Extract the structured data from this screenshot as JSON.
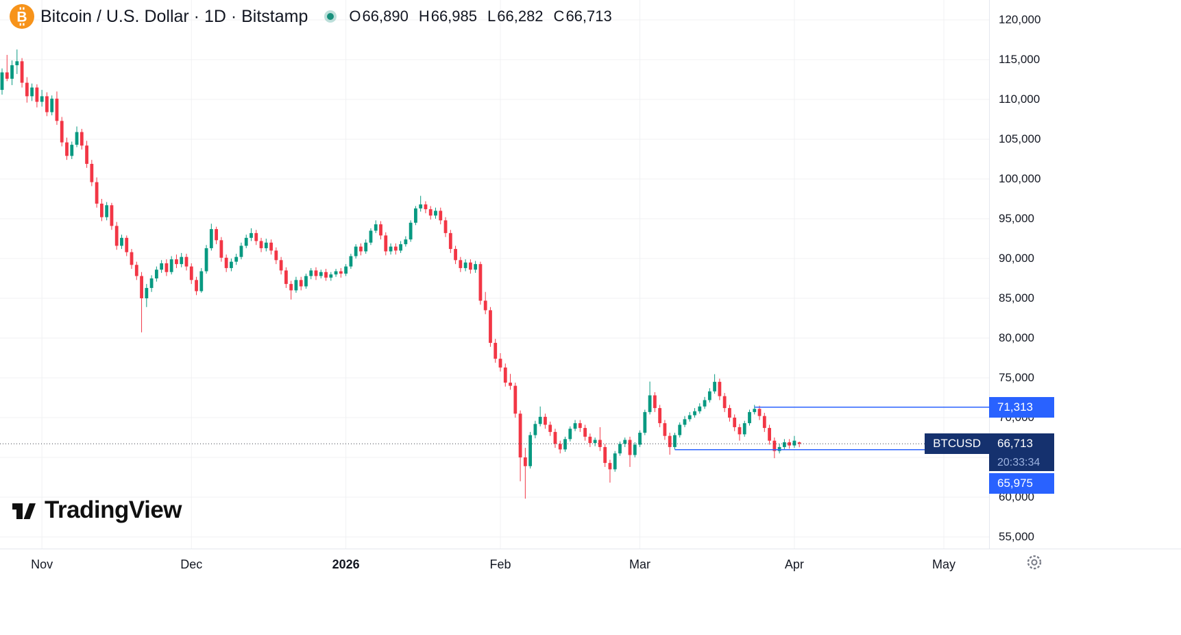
{
  "colors": {
    "accent": "#2962ff",
    "up": "#089981",
    "down": "#f23645",
    "label_navy": "#15316e",
    "text": "#131722",
    "muted": "#787b86",
    "grid": "#f0f1f3",
    "dotted_price_line": "#363a45",
    "btc_orange": "#f7931a",
    "live_dot_teal": "#17907c"
  },
  "header": {
    "title": "Bitcoin / U.S. Dollar · 1D · Bitstamp",
    "ohlc": {
      "o_label": "O",
      "o_value": "66,890",
      "h_label": "H",
      "h_value": "66,985",
      "l_label": "L",
      "l_value": "66,282",
      "c_label": "C",
      "c_value": "66,713"
    }
  },
  "watermark": {
    "text": "TradingView"
  },
  "price_axis": {
    "ticks": [
      {
        "value": 120000,
        "label": "120,000"
      },
      {
        "value": 115000,
        "label": "115,000"
      },
      {
        "value": 110000,
        "label": "110,000"
      },
      {
        "value": 105000,
        "label": "105,000"
      },
      {
        "value": 100000,
        "label": "100,000"
      },
      {
        "value": 95000,
        "label": "95,000"
      },
      {
        "value": 90000,
        "label": "90,000"
      },
      {
        "value": 85000,
        "label": "85,000"
      },
      {
        "value": 80000,
        "label": "80,000"
      },
      {
        "value": 75000,
        "label": "75,000"
      },
      {
        "value": 70000,
        "label": "70,000"
      },
      {
        "value": 65000,
        "label": "65,000"
      },
      {
        "value": 60000,
        "label": "60,000"
      },
      {
        "value": 55000,
        "label": "55,000"
      }
    ]
  },
  "time_axis": {
    "labels": [
      {
        "label": "Nov",
        "index": 8,
        "bold": false
      },
      {
        "label": "Dec",
        "index": 38,
        "bold": false
      },
      {
        "label": "2026",
        "index": 69,
        "bold": true
      },
      {
        "label": "Feb",
        "index": 100,
        "bold": false
      },
      {
        "label": "Mar",
        "index": 128,
        "bold": false
      },
      {
        "label": "Apr",
        "index": 159,
        "bold": false
      },
      {
        "label": "May",
        "index": 189,
        "bold": false
      }
    ]
  },
  "price_labels": {
    "current": {
      "symbol": "BTCUSD",
      "price": "66,713",
      "value": 66713,
      "countdown": "20:33:34"
    },
    "levels": [
      {
        "label": "71,313",
        "value": 71313,
        "start_index": 151
      },
      {
        "label": "65,975",
        "value": 65975,
        "start_index": 135
      }
    ]
  },
  "chart_data": {
    "type": "candlestick",
    "title": "Bitcoin / U.S. Dollar",
    "symbol": "BTCUSD",
    "interval": "1D",
    "exchange": "Bitstamp",
    "current_bar": {
      "open": 66890,
      "high": 66985,
      "low": 66282,
      "close": 66713
    },
    "y_axis": {
      "min": 55000,
      "max": 120000,
      "tick_step": 5000
    },
    "x_axis_labels": [
      "Nov",
      "Dec",
      "2026",
      "Feb",
      "Mar",
      "Apr",
      "May"
    ],
    "grid": true,
    "level_lines": [
      71313,
      65975
    ],
    "current_price_line": 66713,
    "candles_format": [
      "open",
      "high",
      "low",
      "close"
    ],
    "candles": [
      [
        111200,
        113900,
        110600,
        113400
      ],
      [
        113400,
        115600,
        112300,
        112600
      ],
      [
        112600,
        114900,
        111800,
        114300
      ],
      [
        114300,
        116278,
        113200,
        114800
      ],
      [
        114800,
        115200,
        111500,
        112100
      ],
      [
        112100,
        112800,
        109600,
        110400
      ],
      [
        110400,
        112000,
        109800,
        111500
      ],
      [
        111500,
        111900,
        109000,
        109700
      ],
      [
        109700,
        111200,
        109100,
        110400
      ],
      [
        110400,
        110900,
        107900,
        108400
      ],
      [
        108400,
        110500,
        108000,
        110100
      ],
      [
        110100,
        111000,
        106800,
        107300
      ],
      [
        107300,
        107800,
        104100,
        104600
      ],
      [
        104600,
        105200,
        102400,
        102900
      ],
      [
        102900,
        104700,
        102500,
        104300
      ],
      [
        104300,
        106600,
        104000,
        105900
      ],
      [
        105900,
        106300,
        103700,
        104200
      ],
      [
        104200,
        104800,
        101400,
        101900
      ],
      [
        101900,
        102400,
        99100,
        99600
      ],
      [
        99600,
        100200,
        96400,
        96900
      ],
      [
        96900,
        97500,
        94700,
        95200
      ],
      [
        95200,
        97100,
        94800,
        96700
      ],
      [
        96700,
        97000,
        93600,
        94100
      ],
      [
        94100,
        94600,
        91100,
        91600
      ],
      [
        91600,
        93000,
        91200,
        92600
      ],
      [
        92600,
        92900,
        90300,
        90800
      ],
      [
        90800,
        91200,
        88700,
        89200
      ],
      [
        89200,
        89600,
        87300,
        87800
      ],
      [
        87800,
        88300,
        80719,
        85000
      ],
      [
        85000,
        86800,
        83900,
        86300
      ],
      [
        86300,
        87900,
        85800,
        87500
      ],
      [
        87500,
        89000,
        87100,
        88600
      ],
      [
        88600,
        89800,
        88200,
        89400
      ],
      [
        89400,
        89900,
        87800,
        88300
      ],
      [
        88300,
        90300,
        88000,
        89900
      ],
      [
        89900,
        90500,
        88800,
        89300
      ],
      [
        89300,
        90700,
        88900,
        90200
      ],
      [
        90200,
        90600,
        88500,
        89000
      ],
      [
        89000,
        89400,
        86800,
        87300
      ],
      [
        87300,
        87700,
        85400,
        85900
      ],
      [
        85900,
        88800,
        85700,
        88400
      ],
      [
        88400,
        91700,
        88100,
        91300
      ],
      [
        91300,
        94376,
        91000,
        93700
      ],
      [
        93700,
        94000,
        91800,
        92300
      ],
      [
        92300,
        92700,
        89600,
        90100
      ],
      [
        90100,
        90500,
        88300,
        88800
      ],
      [
        88800,
        90000,
        88400,
        89600
      ],
      [
        89600,
        90600,
        89200,
        90200
      ],
      [
        90200,
        92000,
        89900,
        91600
      ],
      [
        91600,
        93000,
        91300,
        92600
      ],
      [
        92600,
        93800,
        92200,
        93200
      ],
      [
        93200,
        93600,
        91700,
        92200
      ],
      [
        92200,
        92600,
        90800,
        91300
      ],
      [
        91300,
        92500,
        90900,
        92000
      ],
      [
        92000,
        92400,
        90500,
        91000
      ],
      [
        91000,
        91400,
        89300,
        89800
      ],
      [
        89800,
        90200,
        88000,
        88500
      ],
      [
        88500,
        88900,
        86300,
        86800
      ],
      [
        86800,
        87200,
        84847,
        86000
      ],
      [
        86000,
        87700,
        85700,
        87300
      ],
      [
        87300,
        87700,
        86000,
        86500
      ],
      [
        86500,
        88100,
        86200,
        87800
      ],
      [
        87800,
        88800,
        87400,
        88500
      ],
      [
        88500,
        88900,
        87300,
        87800
      ],
      [
        87800,
        88600,
        87500,
        88300
      ],
      [
        88300,
        88700,
        87200,
        87600
      ],
      [
        87600,
        88300,
        87200,
        88000
      ],
      [
        88000,
        88700,
        87700,
        88400
      ],
      [
        88400,
        88800,
        87600,
        88100
      ],
      [
        88100,
        89300,
        87800,
        89000
      ],
      [
        89000,
        90600,
        88700,
        90300
      ],
      [
        90300,
        91800,
        90000,
        91500
      ],
      [
        91500,
        91900,
        90400,
        90900
      ],
      [
        90900,
        92400,
        90600,
        92000
      ],
      [
        92000,
        93800,
        91700,
        93500
      ],
      [
        93500,
        94800,
        93200,
        94300
      ],
      [
        94300,
        94700,
        92400,
        92900
      ],
      [
        92900,
        93300,
        90400,
        90900
      ],
      [
        90900,
        91900,
        90500,
        91500
      ],
      [
        91500,
        91900,
        90500,
        91000
      ],
      [
        91000,
        92200,
        90700,
        91800
      ],
      [
        91800,
        92800,
        91500,
        92400
      ],
      [
        92400,
        94800,
        92100,
        94500
      ],
      [
        94500,
        96600,
        94200,
        96300
      ],
      [
        96300,
        97882,
        95900,
        96800
      ],
      [
        96800,
        97200,
        95700,
        96200
      ],
      [
        96200,
        96600,
        94900,
        95400
      ],
      [
        95400,
        96400,
        95000,
        96000
      ],
      [
        96000,
        96400,
        94300,
        94800
      ],
      [
        94800,
        95200,
        92700,
        93200
      ],
      [
        93200,
        93600,
        90700,
        91200
      ],
      [
        91200,
        91600,
        89300,
        89800
      ],
      [
        89800,
        90200,
        88300,
        88800
      ],
      [
        88800,
        89900,
        88400,
        89500
      ],
      [
        89500,
        89900,
        88100,
        88600
      ],
      [
        88600,
        89700,
        88200,
        89300
      ],
      [
        89300,
        89600,
        84200,
        84700
      ],
      [
        84700,
        85800,
        83000,
        83500
      ],
      [
        83500,
        83900,
        78900,
        79400
      ],
      [
        79400,
        79900,
        76900,
        77400
      ],
      [
        77400,
        78100,
        75800,
        76300
      ],
      [
        76300,
        76800,
        73900,
        74400
      ],
      [
        74400,
        75500,
        73500,
        74000
      ],
      [
        74000,
        74400,
        70000,
        70500
      ],
      [
        70500,
        70900,
        62000,
        65000
      ],
      [
        65000,
        66200,
        59811,
        63900
      ],
      [
        63900,
        68200,
        63600,
        67800
      ],
      [
        67800,
        69600,
        67400,
        69200
      ],
      [
        69200,
        71400,
        68900,
        70100
      ],
      [
        70100,
        70500,
        68600,
        69100
      ],
      [
        69100,
        69500,
        67700,
        68200
      ],
      [
        68200,
        68600,
        66200,
        66700
      ],
      [
        66700,
        67100,
        65500,
        66000
      ],
      [
        66000,
        67600,
        65700,
        67300
      ],
      [
        67300,
        68900,
        67000,
        68600
      ],
      [
        68600,
        69700,
        68300,
        69300
      ],
      [
        69300,
        69700,
        68200,
        68700
      ],
      [
        68700,
        69100,
        67100,
        67600
      ],
      [
        67600,
        68000,
        66300,
        66800
      ],
      [
        66800,
        67500,
        66400,
        67200
      ],
      [
        67200,
        68800,
        65800,
        66300
      ],
      [
        66300,
        66700,
        63800,
        64300
      ],
      [
        64300,
        64700,
        61832,
        63500
      ],
      [
        63500,
        65800,
        63200,
        65500
      ],
      [
        65500,
        67000,
        65200,
        66700
      ],
      [
        66700,
        67500,
        66300,
        67200
      ],
      [
        67200,
        67600,
        63800,
        65300
      ],
      [
        65300,
        66900,
        65000,
        66600
      ],
      [
        66600,
        68400,
        66300,
        68100
      ],
      [
        68100,
        71000,
        67800,
        70700
      ],
      [
        70700,
        74532,
        70400,
        72800
      ],
      [
        72800,
        73200,
        70700,
        71200
      ],
      [
        71200,
        71600,
        68800,
        69300
      ],
      [
        69300,
        69700,
        67200,
        67700
      ],
      [
        67700,
        68100,
        65336,
        66300
      ],
      [
        66300,
        68100,
        66000,
        67800
      ],
      [
        67800,
        69400,
        67500,
        69100
      ],
      [
        69100,
        70200,
        68800,
        69800
      ],
      [
        69800,
        70700,
        69500,
        70300
      ],
      [
        70300,
        71200,
        70000,
        70800
      ],
      [
        70800,
        71800,
        70500,
        71400
      ],
      [
        71400,
        72600,
        71100,
        72200
      ],
      [
        72200,
        73700,
        71900,
        73300
      ],
      [
        73300,
        75463,
        73000,
        74500
      ],
      [
        74500,
        74900,
        72200,
        72700
      ],
      [
        72700,
        73100,
        70700,
        71200
      ],
      [
        71200,
        71600,
        69500,
        70000
      ],
      [
        70000,
        70400,
        68300,
        68800
      ],
      [
        68800,
        69200,
        67100,
        67900
      ],
      [
        67900,
        69600,
        67600,
        69300
      ],
      [
        69300,
        71000,
        69000,
        70700
      ],
      [
        70700,
        71600,
        70400,
        71100
      ],
      [
        71100,
        71500,
        69700,
        70200
      ],
      [
        70200,
        70600,
        68200,
        68700
      ],
      [
        68700,
        69100,
        66600,
        67100
      ],
      [
        67100,
        67500,
        64900,
        65800
      ],
      [
        65800,
        66700,
        65500,
        66300
      ],
      [
        66300,
        67300,
        66000,
        66900
      ],
      [
        66900,
        67300,
        66100,
        66500
      ],
      [
        66500,
        67700,
        66200,
        67100
      ],
      [
        66890,
        66985,
        66282,
        66713
      ]
    ]
  }
}
